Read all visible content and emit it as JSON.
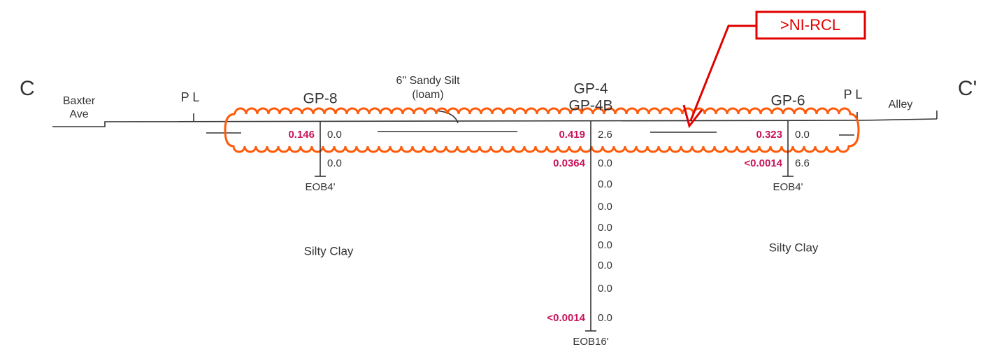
{
  "section_ends": [
    "C",
    "C'"
  ],
  "streets": [
    {
      "lines": [
        "Baxter",
        "Ave"
      ]
    },
    {
      "lines": [
        "Alley"
      ]
    }
  ],
  "property_lines": [
    "P L",
    "P L"
  ],
  "annotation": {
    "lines": [
      "6\" Sandy Silt",
      "(loam)"
    ]
  },
  "callout": ">NI-RCL",
  "soil_labels": [
    "Silty Clay",
    "Silty Clay"
  ],
  "borings": [
    {
      "names": [
        "GP-8"
      ],
      "rows": [
        {
          "conc": "0.146",
          "pid": "0.0"
        },
        {
          "pid": "0.0"
        }
      ],
      "eob": "EOB4'"
    },
    {
      "names": [
        "GP-4",
        "GP-4B"
      ],
      "rows": [
        {
          "conc": "0.419",
          "pid": "2.6"
        },
        {
          "conc": "0.0364",
          "pid": "0.0"
        },
        {
          "pid": "0.0"
        },
        {
          "pid": "0.0"
        },
        {
          "pid": "0.0"
        },
        {
          "pid": "0.0"
        },
        {
          "pid": "0.0"
        },
        {
          "pid": "0.0"
        },
        {
          "conc": "<0.0014",
          "pid": "0.0"
        }
      ],
      "eob": "EOB16'"
    },
    {
      "names": [
        "GP-6"
      ],
      "rows": [
        {
          "conc": "0.323",
          "pid": "0.0"
        },
        {
          "conc": "<0.0014",
          "pid": "6.6"
        }
      ],
      "eob": "EOB4'"
    }
  ]
}
